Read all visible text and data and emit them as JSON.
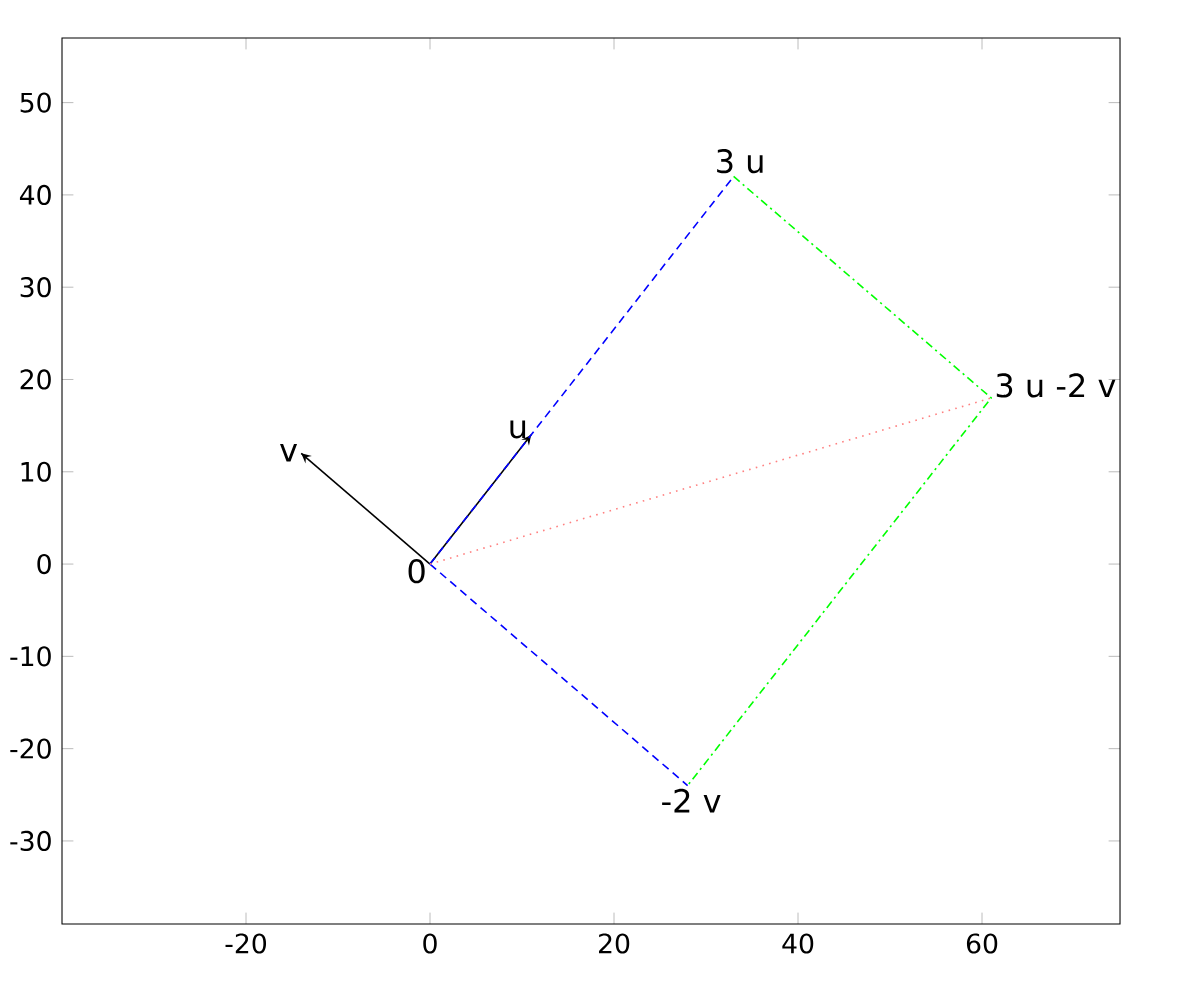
{
  "chart_data": {
    "type": "line",
    "xlim": [
      -40,
      75
    ],
    "ylim": [
      -39,
      57
    ],
    "xticks": [
      -20,
      0,
      20,
      40,
      60
    ],
    "yticks": [
      -30,
      -20,
      -10,
      0,
      10,
      20,
      30,
      40,
      50
    ],
    "grid": false,
    "series": [
      {
        "x": [
          0,
          -14
        ],
        "values": [
          0,
          12
        ],
        "color": "#000000",
        "line_style": "solid"
      },
      {
        "x": [
          0,
          11
        ],
        "values": [
          0,
          14
        ],
        "color": "#000000",
        "line_style": "solid"
      },
      {
        "x": [
          0,
          33
        ],
        "values": [
          0,
          42
        ],
        "color": "#0000ff",
        "line_style": "dashed"
      },
      {
        "x": [
          0,
          28
        ],
        "values": [
          0,
          -24
        ],
        "color": "#0000ff",
        "line_style": "dashed"
      },
      {
        "x": [
          33,
          61,
          28
        ],
        "values": [
          42,
          18,
          -24
        ],
        "color": "#00ff00",
        "line_style": "dashdot"
      },
      {
        "x": [
          0,
          61
        ],
        "values": [
          0,
          18
        ],
        "color": "#ff8080",
        "line_style": "dotted"
      }
    ],
    "annotations": [
      {
        "text": "v",
        "x": -14,
        "y": 12
      },
      {
        "text": "u",
        "x": 11,
        "y": 14
      },
      {
        "text": "0",
        "x": 0,
        "y": 0
      },
      {
        "text": "3 u",
        "x": 33,
        "y": 42
      },
      {
        "text": "3 u -2 v",
        "x": 61,
        "y": 18
      },
      {
        "text": "-2 v",
        "x": 28,
        "y": -24
      }
    ]
  }
}
